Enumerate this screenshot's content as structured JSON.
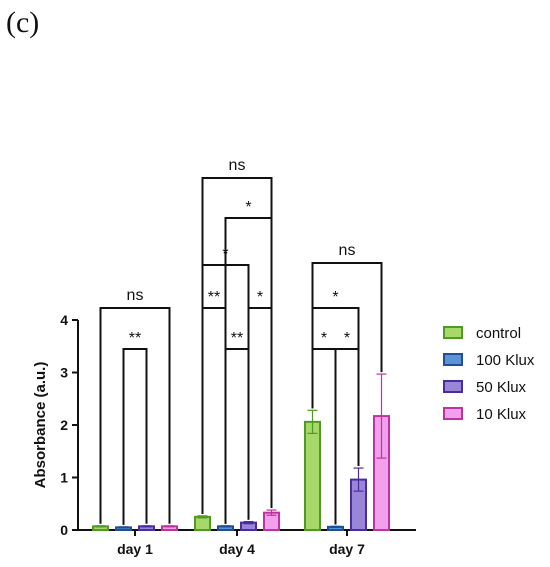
{
  "panel_label": "(c)",
  "chart_data": {
    "type": "bar",
    "title": "",
    "xlabel": "",
    "ylabel": "Absorbance (a.u.)",
    "ylim": [
      0,
      4
    ],
    "yticks": [
      "0",
      "1",
      "2",
      "3",
      "4"
    ],
    "categories": [
      "day 1",
      "day 4",
      "day 7"
    ],
    "legend_position": "right",
    "series": [
      {
        "name": "control",
        "fill": "#a6d86a",
        "stroke": "#4f9a23",
        "values": [
          0.07,
          0.25,
          2.06
        ],
        "errors": [
          0.01,
          0.02,
          0.22
        ]
      },
      {
        "name": "100 Klux",
        "fill": "#5b93d6",
        "stroke": "#1f4f95",
        "values": [
          0.05,
          0.07,
          0.06
        ],
        "errors": [
          0.01,
          0.01,
          0.01
        ]
      },
      {
        "name": "50 Klux",
        "fill": "#9a86d8",
        "stroke": "#4b2c9f",
        "values": [
          0.07,
          0.14,
          0.96
        ],
        "errors": [
          0.01,
          0.02,
          0.22
        ]
      },
      {
        "name": "10 Klux",
        "fill": "#f2a0ee",
        "stroke": "#c0339f",
        "values": [
          0.07,
          0.33,
          2.17
        ],
        "errors": [
          0.01,
          0.05,
          0.8
        ]
      }
    ],
    "comparisons": [
      {
        "group": 0,
        "from": 1,
        "to": 2,
        "level": 1,
        "label": "**"
      },
      {
        "group": 0,
        "from": 0,
        "to": 3,
        "level": 2,
        "label": "ns"
      },
      {
        "group": 1,
        "from": 1,
        "to": 2,
        "level": 1,
        "label": "**"
      },
      {
        "group": 1,
        "from": 0,
        "to": 1,
        "level": 2,
        "label": "**"
      },
      {
        "group": 1,
        "from": 2,
        "to": 3,
        "level": 2,
        "label": "*"
      },
      {
        "group": 1,
        "from": 0,
        "to": 2,
        "level": 3,
        "label": "*"
      },
      {
        "group": 1,
        "from": 1,
        "to": 3,
        "level": 4,
        "label": "*"
      },
      {
        "group": 1,
        "from": 0,
        "to": 3,
        "level": 5,
        "label": "ns"
      },
      {
        "group": 2,
        "from": 0,
        "to": 1,
        "level": 1,
        "label": "*"
      },
      {
        "group": 2,
        "from": 1,
        "to": 2,
        "level": 1,
        "label": "*"
      },
      {
        "group": 2,
        "from": 0,
        "to": 2,
        "level": 2,
        "label": "*"
      },
      {
        "group": 2,
        "from": 0,
        "to": 3,
        "level": 3,
        "label": "ns"
      }
    ]
  }
}
